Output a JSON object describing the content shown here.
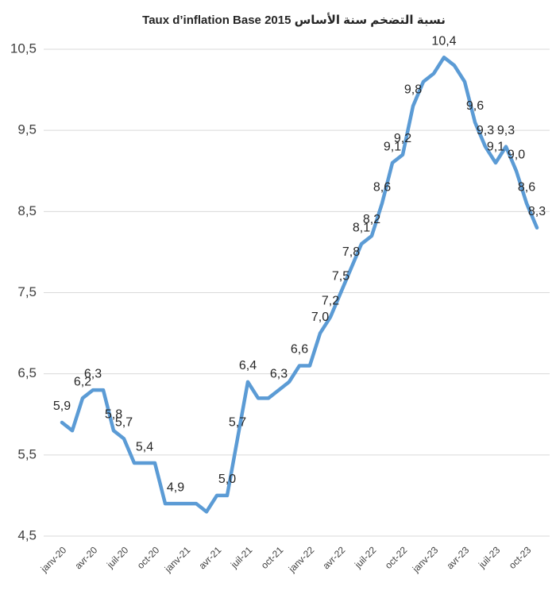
{
  "chart_data": {
    "type": "line",
    "title": "Taux d’inflation Base  2015 نسبة التضخم سنة الأساس",
    "categories": [
      "janv-20",
      null,
      null,
      "avr-20",
      null,
      null,
      "juil-20",
      null,
      null,
      "oct-20",
      null,
      null,
      "janv-21",
      null,
      null,
      "avr-21",
      null,
      null,
      "juil-21",
      null,
      null,
      "oct-21",
      null,
      null,
      "janv-22",
      null,
      null,
      "avr-22",
      null,
      null,
      "juil-22",
      null,
      null,
      "oct-22",
      null,
      null,
      "janv-23",
      null,
      null,
      "avr-23",
      null,
      null,
      "juil-23",
      null,
      null,
      "oct-23",
      null
    ],
    "series": [
      {
        "name": "Taux d'inflation",
        "color": "#5b9bd5",
        "values": [
          5.9,
          5.8,
          6.2,
          6.3,
          6.3,
          5.8,
          5.7,
          5.4,
          5.4,
          5.4,
          4.9,
          4.9,
          4.9,
          4.9,
          4.8,
          5.0,
          5.0,
          5.7,
          6.4,
          6.2,
          6.2,
          6.3,
          6.4,
          6.6,
          6.6,
          7.0,
          7.2,
          7.5,
          7.8,
          8.1,
          8.2,
          8.6,
          9.1,
          9.2,
          9.8,
          10.1,
          10.2,
          10.4,
          10.3,
          10.1,
          9.6,
          9.3,
          9.1,
          9.3,
          9.0,
          8.6,
          8.3
        ],
        "value_labels": [
          "5,9",
          null,
          "6,2",
          "6,3",
          null,
          "5,8",
          "5,7",
          null,
          "5,4",
          null,
          null,
          "4,9",
          null,
          null,
          null,
          null,
          "5,0",
          "5,7",
          "6,4",
          null,
          null,
          "6,3",
          null,
          "6,6",
          null,
          "7,0",
          "7,2",
          "7,5",
          "7,8",
          "8,1",
          "8,2",
          "8,6",
          "9,1",
          "9,2",
          "9,8",
          null,
          null,
          "10,4",
          null,
          null,
          "9,6",
          "9,3",
          "9,1",
          "9,3",
          "9,0",
          "8,6",
          "8,3"
        ]
      }
    ],
    "ylim": [
      4.5,
      10.5
    ],
    "yticks": [
      {
        "value": 4.5,
        "label": "4,5"
      },
      {
        "value": 5.5,
        "label": "5,5"
      },
      {
        "value": 6.5,
        "label": "6,5"
      },
      {
        "value": 7.5,
        "label": "7,5"
      },
      {
        "value": 8.5,
        "label": "8,5"
      },
      {
        "value": 9.5,
        "label": "9,5"
      },
      {
        "value": 10.5,
        "label": "10,5"
      }
    ],
    "grid": true
  }
}
